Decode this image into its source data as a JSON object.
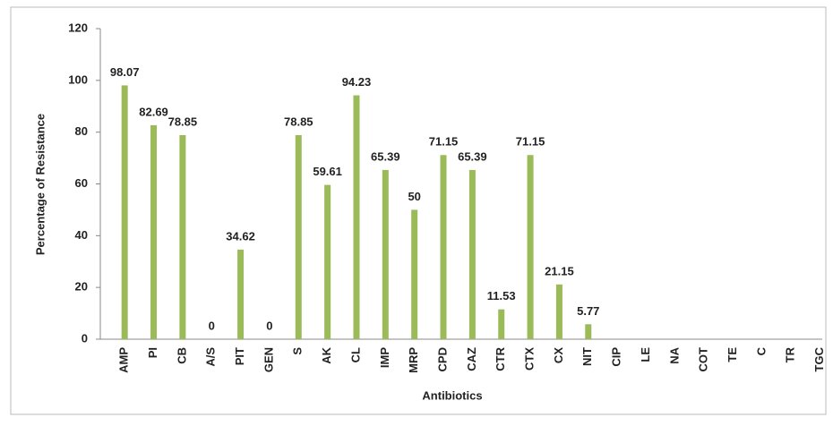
{
  "chart_data": {
    "type": "bar",
    "x_label": "Antibiotics",
    "y_label": "Percentage of Resistance",
    "categories": [
      "AMP",
      "PI",
      "CB",
      "A/S",
      "PIT",
      "GEN",
      "S",
      "AK",
      "CL",
      "IMP",
      "MRP",
      "CPD",
      "CAZ",
      "CTR",
      "CTX",
      "CX",
      "NIT",
      "CIP",
      "LE",
      "NA",
      "COT",
      "TE",
      "C",
      "TR",
      "TGC"
    ],
    "values": [
      98.07,
      82.69,
      78.85,
      0,
      34.62,
      0,
      78.85,
      59.61,
      94.23,
      65.39,
      50,
      71.15,
      65.39,
      11.53,
      71.15,
      21.15,
      5.77,
      null,
      null,
      null,
      null,
      null,
      null,
      null,
      null
    ],
    "color": "#9bbb59",
    "ylim": [
      0,
      120
    ],
    "yticks": [
      0,
      20,
      40,
      60,
      80,
      100,
      120
    ],
    "grid": false
  }
}
